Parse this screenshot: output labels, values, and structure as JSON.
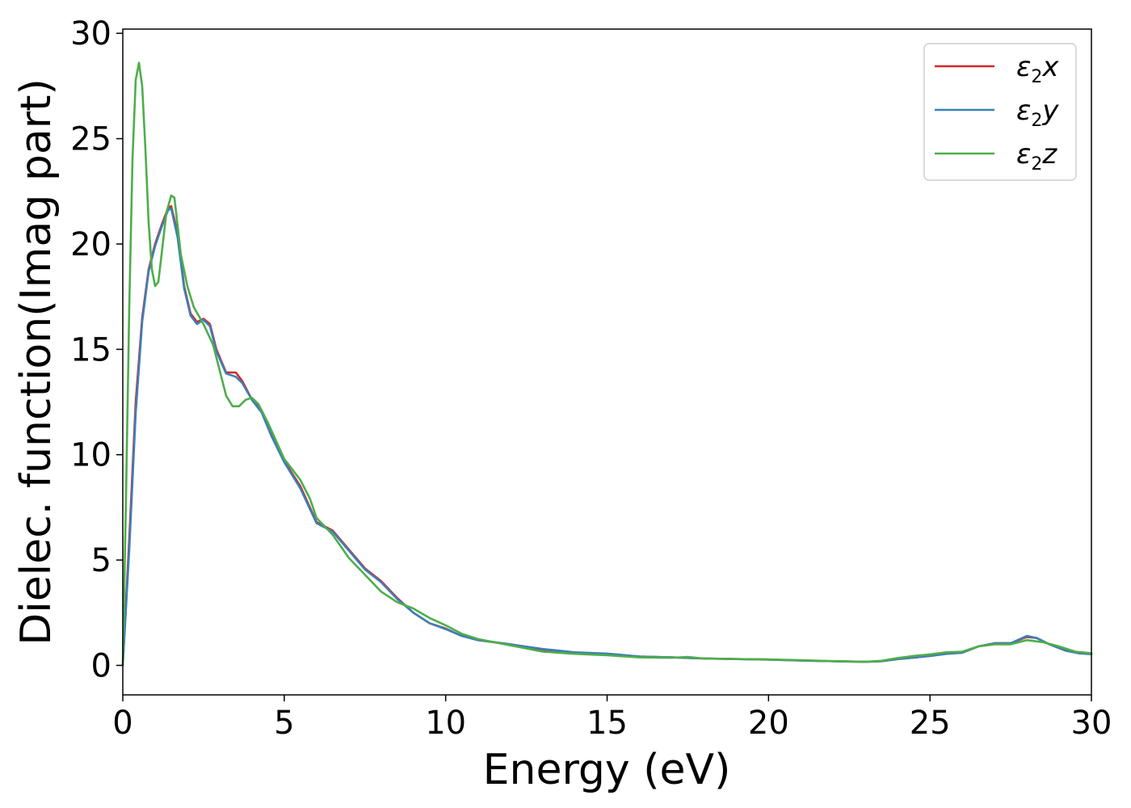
{
  "chart_data": {
    "type": "line",
    "xlabel": "Energy (eV)",
    "ylabel": "Dielec. function(Imag part)",
    "xlim": [
      0,
      30
    ],
    "ylim": [
      -1.4,
      30.2
    ],
    "x_ticks": [
      "0",
      "5",
      "10",
      "15",
      "20",
      "25",
      "30"
    ],
    "y_ticks": [
      "0",
      "5",
      "10",
      "15",
      "20",
      "25",
      "30"
    ],
    "grid": false,
    "legend_position": "top-right",
    "series": [
      {
        "name": "ε2x",
        "legend_main": "ε",
        "legend_sub": "2",
        "legend_tail": "x",
        "color": "#d62728",
        "points": [
          [
            0,
            0
          ],
          [
            0.2,
            6
          ],
          [
            0.4,
            12.5
          ],
          [
            0.6,
            16.5
          ],
          [
            0.8,
            18.8
          ],
          [
            1.0,
            20.0
          ],
          [
            1.2,
            20.9
          ],
          [
            1.4,
            21.7
          ],
          [
            1.5,
            21.8
          ],
          [
            1.7,
            20.5
          ],
          [
            1.9,
            18.0
          ],
          [
            2.1,
            16.7
          ],
          [
            2.3,
            16.3
          ],
          [
            2.5,
            16.45
          ],
          [
            2.7,
            16.2
          ],
          [
            2.9,
            15.0
          ],
          [
            3.2,
            13.9
          ],
          [
            3.5,
            13.9
          ],
          [
            3.7,
            13.5
          ],
          [
            4.0,
            12.6
          ],
          [
            4.3,
            12.1
          ],
          [
            4.6,
            11.0
          ],
          [
            5.0,
            9.7
          ],
          [
            5.5,
            8.5
          ],
          [
            6.0,
            6.8
          ],
          [
            6.5,
            6.4
          ],
          [
            7.0,
            5.5
          ],
          [
            7.5,
            4.6
          ],
          [
            8.0,
            4.0
          ],
          [
            8.5,
            3.2
          ],
          [
            9.0,
            2.5
          ],
          [
            9.5,
            2.0
          ],
          [
            10.0,
            1.75
          ],
          [
            10.5,
            1.4
          ],
          [
            11.0,
            1.2
          ],
          [
            11.5,
            1.1
          ],
          [
            12.0,
            1.0
          ],
          [
            13.0,
            0.75
          ],
          [
            14.0,
            0.6
          ],
          [
            15.0,
            0.55
          ],
          [
            16.0,
            0.42
          ],
          [
            17.0,
            0.38
          ],
          [
            18.0,
            0.33
          ],
          [
            19.0,
            0.3
          ],
          [
            20.0,
            0.28
          ],
          [
            21.0,
            0.23
          ],
          [
            22.0,
            0.2
          ],
          [
            23.0,
            0.17
          ],
          [
            23.5,
            0.2
          ],
          [
            24.0,
            0.3
          ],
          [
            24.5,
            0.37
          ],
          [
            25.0,
            0.45
          ],
          [
            25.5,
            0.55
          ],
          [
            26.0,
            0.6
          ],
          [
            26.5,
            0.9
          ],
          [
            27.0,
            1.05
          ],
          [
            27.5,
            1.05
          ],
          [
            28.0,
            1.35
          ],
          [
            28.3,
            1.3
          ],
          [
            28.7,
            1.0
          ],
          [
            29.2,
            0.7
          ],
          [
            29.6,
            0.58
          ],
          [
            30.0,
            0.55
          ]
        ]
      },
      {
        "name": "ε2y",
        "legend_main": "ε",
        "legend_sub": "2",
        "legend_tail": "y",
        "color": "#3c7fb8",
        "points": [
          [
            0,
            0
          ],
          [
            0.2,
            5.5
          ],
          [
            0.4,
            12.0
          ],
          [
            0.6,
            16.3
          ],
          [
            0.8,
            18.7
          ],
          [
            1.0,
            19.9
          ],
          [
            1.2,
            20.8
          ],
          [
            1.4,
            21.6
          ],
          [
            1.5,
            21.7
          ],
          [
            1.7,
            20.3
          ],
          [
            1.9,
            17.9
          ],
          [
            2.1,
            16.6
          ],
          [
            2.3,
            16.2
          ],
          [
            2.5,
            16.4
          ],
          [
            2.7,
            16.1
          ],
          [
            2.9,
            14.9
          ],
          [
            3.2,
            13.85
          ],
          [
            3.5,
            13.7
          ],
          [
            3.7,
            13.4
          ],
          [
            4.0,
            12.6
          ],
          [
            4.3,
            12.0
          ],
          [
            4.6,
            10.9
          ],
          [
            5.0,
            9.65
          ],
          [
            5.5,
            8.4
          ],
          [
            6.0,
            6.75
          ],
          [
            6.5,
            6.35
          ],
          [
            7.0,
            5.45
          ],
          [
            7.5,
            4.55
          ],
          [
            8.0,
            3.95
          ],
          [
            8.5,
            3.15
          ],
          [
            9.0,
            2.5
          ],
          [
            9.5,
            2.0
          ],
          [
            10.0,
            1.72
          ],
          [
            10.5,
            1.4
          ],
          [
            11.0,
            1.2
          ],
          [
            11.5,
            1.1
          ],
          [
            12.0,
            1.0
          ],
          [
            13.0,
            0.78
          ],
          [
            14.0,
            0.62
          ],
          [
            15.0,
            0.56
          ],
          [
            16.0,
            0.42
          ],
          [
            17.0,
            0.38
          ],
          [
            18.0,
            0.33
          ],
          [
            19.0,
            0.3
          ],
          [
            20.0,
            0.27
          ],
          [
            21.0,
            0.23
          ],
          [
            22.0,
            0.2
          ],
          [
            23.0,
            0.17
          ],
          [
            23.5,
            0.2
          ],
          [
            24.0,
            0.3
          ],
          [
            24.5,
            0.37
          ],
          [
            25.0,
            0.45
          ],
          [
            25.5,
            0.55
          ],
          [
            26.0,
            0.6
          ],
          [
            26.5,
            0.9
          ],
          [
            27.0,
            1.05
          ],
          [
            27.5,
            1.05
          ],
          [
            28.0,
            1.4
          ],
          [
            28.3,
            1.3
          ],
          [
            28.7,
            1.0
          ],
          [
            29.2,
            0.7
          ],
          [
            29.6,
            0.58
          ],
          [
            30.0,
            0.53
          ]
        ]
      },
      {
        "name": "ε2z",
        "legend_main": "ε",
        "legend_sub": "2",
        "legend_tail": "z",
        "color": "#4dae4a",
        "points": [
          [
            0,
            0
          ],
          [
            0.1,
            8
          ],
          [
            0.2,
            17
          ],
          [
            0.3,
            24
          ],
          [
            0.4,
            27.8
          ],
          [
            0.5,
            28.6
          ],
          [
            0.6,
            27.5
          ],
          [
            0.7,
            24.5
          ],
          [
            0.8,
            21.0
          ],
          [
            0.9,
            18.8
          ],
          [
            1.0,
            18.0
          ],
          [
            1.1,
            18.2
          ],
          [
            1.2,
            19.5
          ],
          [
            1.35,
            21.5
          ],
          [
            1.5,
            22.3
          ],
          [
            1.6,
            22.2
          ],
          [
            1.8,
            19.5
          ],
          [
            2.0,
            18.0
          ],
          [
            2.2,
            17.0
          ],
          [
            2.5,
            16.2
          ],
          [
            2.8,
            15.2
          ],
          [
            3.0,
            14.0
          ],
          [
            3.2,
            12.8
          ],
          [
            3.4,
            12.3
          ],
          [
            3.6,
            12.3
          ],
          [
            3.8,
            12.6
          ],
          [
            4.0,
            12.7
          ],
          [
            4.2,
            12.4
          ],
          [
            4.5,
            11.5
          ],
          [
            5.0,
            9.8
          ],
          [
            5.5,
            8.8
          ],
          [
            5.8,
            7.9
          ],
          [
            6.0,
            7.0
          ],
          [
            6.5,
            6.2
          ],
          [
            7.0,
            5.1
          ],
          [
            7.5,
            4.3
          ],
          [
            8.0,
            3.5
          ],
          [
            8.5,
            3.0
          ],
          [
            9.0,
            2.7
          ],
          [
            9.5,
            2.25
          ],
          [
            10.0,
            1.9
          ],
          [
            10.5,
            1.5
          ],
          [
            11.0,
            1.25
          ],
          [
            11.5,
            1.1
          ],
          [
            12.0,
            0.95
          ],
          [
            13.0,
            0.65
          ],
          [
            14.0,
            0.55
          ],
          [
            15.0,
            0.48
          ],
          [
            16.0,
            0.38
          ],
          [
            17.0,
            0.36
          ],
          [
            17.5,
            0.4
          ],
          [
            18.0,
            0.32
          ],
          [
            19.0,
            0.3
          ],
          [
            20.0,
            0.28
          ],
          [
            21.0,
            0.25
          ],
          [
            22.0,
            0.2
          ],
          [
            23.0,
            0.17
          ],
          [
            23.5,
            0.22
          ],
          [
            24.0,
            0.35
          ],
          [
            24.5,
            0.45
          ],
          [
            25.0,
            0.52
          ],
          [
            25.5,
            0.62
          ],
          [
            26.0,
            0.65
          ],
          [
            26.5,
            0.9
          ],
          [
            27.0,
            1.0
          ],
          [
            27.5,
            1.0
          ],
          [
            28.0,
            1.2
          ],
          [
            28.5,
            1.1
          ],
          [
            29.0,
            0.9
          ],
          [
            29.5,
            0.65
          ],
          [
            30.0,
            0.58
          ]
        ]
      }
    ]
  }
}
